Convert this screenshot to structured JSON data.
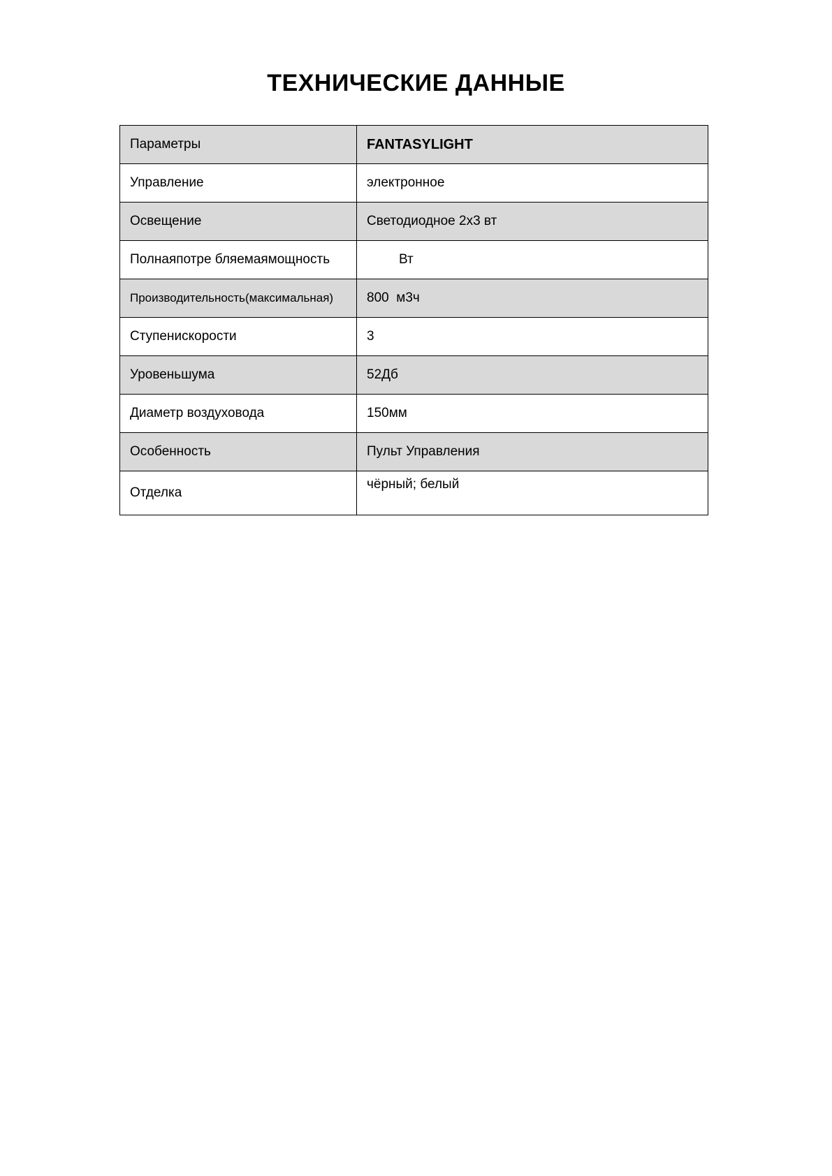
{
  "title": "ТЕХНИЧЕСКИЕ ДАННЫЕ",
  "table": {
    "header": {
      "param": "Параметры",
      "model": "FANTASYLIGHT"
    },
    "rows": [
      {
        "param": "Управление",
        "value": "электронное"
      },
      {
        "param": "Освещение",
        "value": "Светодиодное 2x3 вт"
      },
      {
        "param": "Полнаяпотре бляемаямощность",
        "value": "Вт"
      },
      {
        "param": "Производительность(максимальная)",
        "value": "800  м3ч"
      },
      {
        "param": "Ступенискорости",
        "value": "3"
      },
      {
        "param": "Уровеньшума",
        "value": "52Дб"
      },
      {
        "param": "Диаметр воздуховода",
        "value": "150мм"
      },
      {
        "param": "Особенность",
        "value": "Пульт Управления"
      },
      {
        "param": "Отделка",
        "value": "чёрный; белый"
      }
    ]
  },
  "colors": {
    "shaded_row": "#d9d9d9"
  }
}
